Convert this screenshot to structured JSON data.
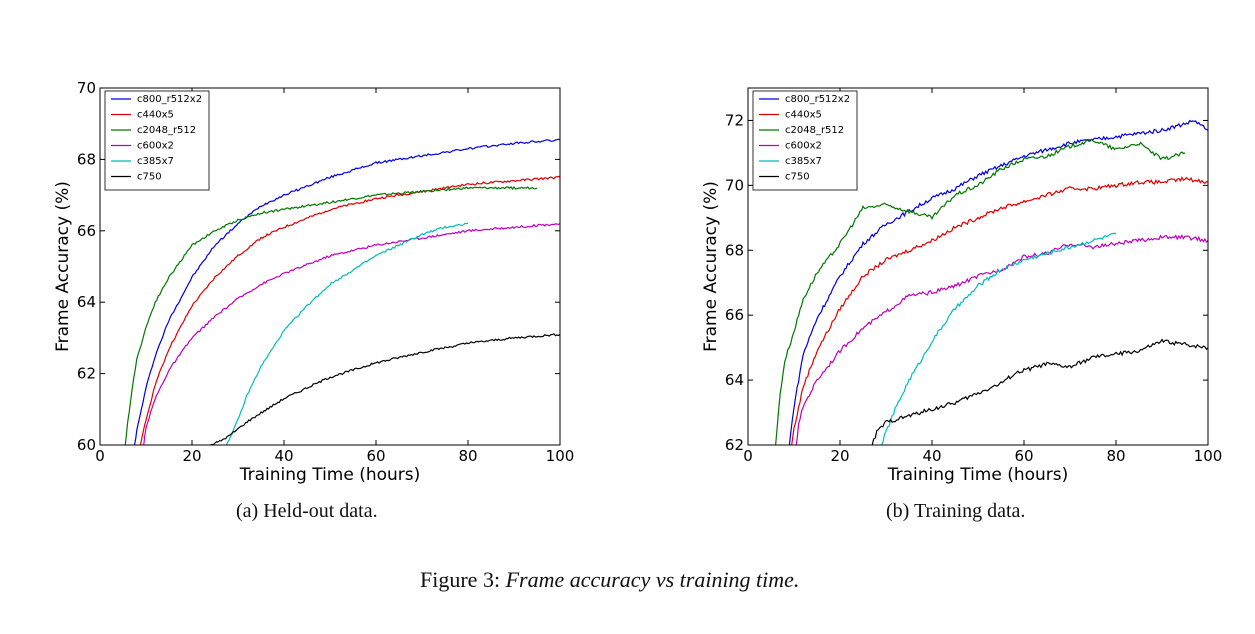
{
  "chart_data": [
    {
      "type": "line",
      "caption": "(a)  Held-out data.",
      "xlabel": "Training Time (hours)",
      "ylabel": "Frame Accuracy (%)",
      "xlim": [
        0,
        100
      ],
      "ylim": [
        60,
        70
      ],
      "xticks": [
        0,
        20,
        40,
        60,
        80,
        100
      ],
      "yticks": [
        60,
        62,
        64,
        66,
        68,
        70
      ],
      "legend_position": "top-left",
      "grid": false,
      "series": [
        {
          "name": "c800_r512x2",
          "color": "#0000dd",
          "x": [
            7.5,
            8,
            10,
            12,
            15,
            20,
            25,
            30,
            35,
            40,
            50,
            60,
            70,
            80,
            90,
            100
          ],
          "y": [
            60,
            60.4,
            61.6,
            62.5,
            63.5,
            64.7,
            65.6,
            66.2,
            66.7,
            67.0,
            67.5,
            67.9,
            68.1,
            68.3,
            68.45,
            68.55
          ]
        },
        {
          "name": "c440x5",
          "color": "#dd0000",
          "x": [
            8.8,
            10,
            12,
            15,
            20,
            25,
            30,
            35,
            40,
            50,
            60,
            70,
            80,
            90,
            100
          ],
          "y": [
            60,
            60.7,
            61.7,
            62.7,
            63.9,
            64.7,
            65.3,
            65.8,
            66.1,
            66.6,
            66.9,
            67.1,
            67.3,
            67.4,
            67.5
          ]
        },
        {
          "name": "c2048_r512",
          "color": "#007700",
          "x": [
            5.5,
            6,
            7,
            8,
            10,
            12,
            15,
            20,
            25,
            30,
            35,
            40,
            50,
            60,
            70,
            80,
            90,
            95
          ],
          "y": [
            60,
            60.6,
            61.6,
            62.4,
            63.3,
            64.0,
            64.7,
            65.6,
            66.0,
            66.3,
            66.5,
            66.6,
            66.8,
            67.0,
            67.1,
            67.2,
            67.2,
            67.2
          ]
        },
        {
          "name": "c600x2",
          "color": "#bb00bb",
          "x": [
            9.5,
            10,
            12,
            15,
            20,
            25,
            30,
            35,
            40,
            50,
            60,
            70,
            80,
            90,
            100
          ],
          "y": [
            60,
            60.5,
            61.3,
            62.1,
            63.0,
            63.6,
            64.1,
            64.5,
            64.8,
            65.3,
            65.6,
            65.8,
            66.0,
            66.1,
            66.2
          ]
        },
        {
          "name": "c385x7",
          "color": "#00bbbb",
          "x": [
            27.5,
            30,
            32,
            35,
            38,
            40,
            45,
            50,
            55,
            60,
            65,
            70,
            75,
            80
          ],
          "y": [
            60,
            60.7,
            61.4,
            62.2,
            62.8,
            63.2,
            63.9,
            64.5,
            64.9,
            65.3,
            65.6,
            65.9,
            66.1,
            66.2
          ]
        },
        {
          "name": "c750",
          "color": "#000000",
          "x": [
            24,
            26,
            28,
            30,
            32,
            35,
            40,
            45,
            50,
            55,
            60,
            70,
            80,
            90,
            100
          ],
          "y": [
            60,
            60.1,
            60.25,
            60.45,
            60.65,
            60.9,
            61.3,
            61.6,
            61.9,
            62.1,
            62.3,
            62.6,
            62.85,
            63.0,
            63.1
          ]
        }
      ]
    },
    {
      "type": "line",
      "caption": "(b)  Training data.",
      "xlabel": "Training Time (hours)",
      "ylabel": "Frame Accuracy (%)",
      "xlim": [
        0,
        100
      ],
      "ylim": [
        62,
        73
      ],
      "xticks": [
        0,
        20,
        40,
        60,
        80,
        100
      ],
      "yticks": [
        62,
        64,
        66,
        68,
        70,
        72
      ],
      "legend_position": "top-left",
      "grid": false,
      "series": [
        {
          "name": "c800_r512x2",
          "color": "#0000dd",
          "x": [
            9,
            10,
            12,
            15,
            20,
            25,
            30,
            35,
            40,
            45,
            50,
            55,
            60,
            65,
            70,
            75,
            80,
            85,
            90,
            95,
            97,
            100
          ],
          "y": [
            62,
            63.2,
            64.8,
            65.9,
            67.2,
            68.2,
            68.8,
            69.2,
            69.6,
            69.9,
            70.3,
            70.6,
            70.9,
            71.1,
            71.3,
            71.4,
            71.5,
            71.6,
            71.7,
            71.9,
            72.0,
            71.7
          ]
        },
        {
          "name": "c440x5",
          "color": "#dd0000",
          "x": [
            9.5,
            10,
            12,
            15,
            20,
            25,
            30,
            35,
            40,
            45,
            50,
            55,
            60,
            65,
            70,
            75,
            80,
            85,
            90,
            95,
            100
          ],
          "y": [
            62,
            62.5,
            63.8,
            64.9,
            66.2,
            67.2,
            67.7,
            68.0,
            68.3,
            68.7,
            69.0,
            69.3,
            69.5,
            69.7,
            69.9,
            69.9,
            70.0,
            70.1,
            70.1,
            70.2,
            70.1
          ]
        },
        {
          "name": "c2048_r512",
          "color": "#007700",
          "x": [
            6,
            7,
            8,
            10,
            12,
            15,
            20,
            25,
            30,
            35,
            40,
            45,
            50,
            55,
            60,
            65,
            70,
            75,
            80,
            85,
            90,
            95
          ],
          "y": [
            62,
            63.6,
            64.6,
            65.5,
            66.5,
            67.3,
            68.2,
            69.3,
            69.4,
            69.2,
            69.0,
            69.7,
            70.0,
            70.5,
            70.8,
            70.9,
            71.2,
            71.4,
            71.1,
            71.3,
            70.8,
            71.0
          ]
        },
        {
          "name": "c600x2",
          "color": "#bb00bb",
          "x": [
            10.5,
            11,
            12,
            15,
            20,
            25,
            30,
            35,
            40,
            45,
            50,
            55,
            60,
            65,
            70,
            75,
            80,
            85,
            90,
            95,
            100
          ],
          "y": [
            62,
            62.6,
            63.2,
            64.0,
            64.9,
            65.6,
            66.1,
            66.6,
            66.7,
            66.9,
            67.2,
            67.4,
            67.8,
            67.9,
            68.2,
            68.1,
            68.2,
            68.3,
            68.4,
            68.4,
            68.3
          ]
        },
        {
          "name": "c385x7",
          "color": "#00bbbb",
          "x": [
            29,
            30,
            32,
            35,
            38,
            40,
            43,
            45,
            48,
            50,
            55,
            60,
            65,
            70,
            75,
            80
          ],
          "y": [
            62,
            62.4,
            63.1,
            64.0,
            64.7,
            65.2,
            65.8,
            66.2,
            66.6,
            66.9,
            67.4,
            67.7,
            67.9,
            68.1,
            68.3,
            68.5
          ]
        },
        {
          "name": "c750",
          "color": "#000000",
          "x": [
            27,
            28,
            30,
            35,
            40,
            45,
            50,
            55,
            58,
            60,
            65,
            70,
            75,
            80,
            85,
            90,
            95,
            100
          ],
          "y": [
            62,
            62.4,
            62.7,
            62.9,
            63.1,
            63.3,
            63.6,
            63.9,
            64.2,
            64.3,
            64.5,
            64.4,
            64.7,
            64.8,
            64.9,
            65.2,
            65.1,
            65.0
          ]
        }
      ]
    }
  ],
  "figure_caption": {
    "label": "Figure 3:",
    "text": "Frame accuracy vs training time."
  }
}
